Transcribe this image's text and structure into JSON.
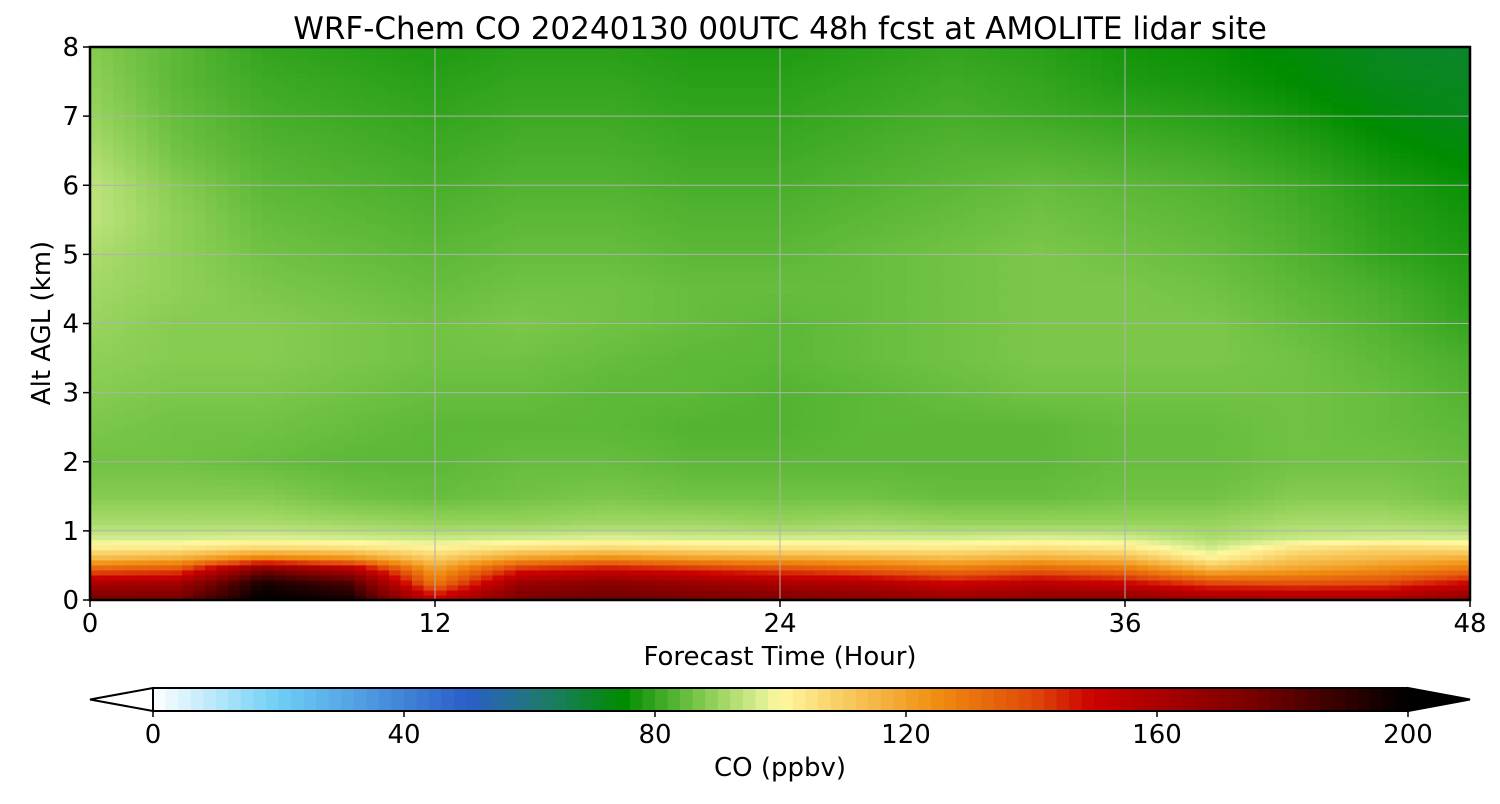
{
  "chart_data": {
    "type": "heatmap",
    "title": "WRF-Chem CO  20240130 00UTC 48h fcst at AMOLITE lidar site",
    "xlabel": "Forecast Time (Hour)",
    "ylabel": "Alt AGL (km)",
    "xlim": [
      0,
      48
    ],
    "ylim": [
      0,
      8
    ],
    "x_ticks": [
      "0",
      "12",
      "24",
      "36",
      "48"
    ],
    "y_ticks": [
      "0",
      "1",
      "2",
      "3",
      "4",
      "5",
      "6",
      "7",
      "8"
    ],
    "grid": true,
    "x": [
      0,
      3,
      6,
      9,
      12,
      15,
      18,
      21,
      24,
      27,
      30,
      33,
      36,
      39,
      42,
      45,
      48
    ],
    "y": [
      0.05,
      0.25,
      0.45,
      0.6,
      0.75,
      0.9,
      1.1,
      1.5,
      2.0,
      2.5,
      3.0,
      3.5,
      4.0,
      4.5,
      5.0,
      5.5,
      6.0,
      6.5,
      7.0,
      7.5,
      7.95
    ],
    "z": [
      [
        175,
        175,
        200,
        195,
        150,
        175,
        178,
        175,
        172,
        170,
        165,
        168,
        168,
        162,
        160,
        160,
        168
      ],
      [
        160,
        162,
        195,
        185,
        130,
        165,
        170,
        165,
        160,
        158,
        150,
        155,
        150,
        140,
        138,
        140,
        150
      ],
      [
        135,
        138,
        175,
        160,
        120,
        145,
        150,
        145,
        140,
        135,
        130,
        135,
        130,
        115,
        120,
        125,
        130
      ],
      [
        115,
        118,
        130,
        125,
        110,
        122,
        126,
        122,
        120,
        118,
        115,
        118,
        115,
        102,
        112,
        115,
        118
      ],
      [
        103,
        104,
        108,
        106,
        102,
        106,
        108,
        106,
        105,
        104,
        104,
        106,
        104,
        96,
        105,
        108,
        106
      ],
      [
        96,
        96,
        97,
        96,
        95,
        96,
        97,
        96,
        96,
        96,
        96,
        97,
        96,
        92,
        95,
        96,
        96
      ],
      [
        92,
        92,
        92,
        91,
        90,
        90,
        91,
        91,
        90,
        91,
        90,
        90,
        90,
        90,
        92,
        92,
        91
      ],
      [
        88,
        88,
        88,
        86,
        85,
        86,
        87,
        86,
        86,
        86,
        85,
        85,
        86,
        86,
        88,
        88,
        86
      ],
      [
        86,
        86,
        85,
        84,
        84,
        85,
        85,
        84,
        84,
        84,
        84,
        84,
        85,
        85,
        86,
        86,
        85
      ],
      [
        87,
        86,
        86,
        85,
        84,
        84,
        84,
        83,
        83,
        84,
        84,
        84,
        85,
        85,
        86,
        85,
        84
      ],
      [
        88,
        87,
        87,
        86,
        85,
        85,
        84,
        84,
        83,
        84,
        85,
        86,
        86,
        86,
        86,
        85,
        83
      ],
      [
        89,
        88,
        88,
        87,
        86,
        86,
        85,
        84,
        84,
        85,
        86,
        87,
        87,
        87,
        86,
        84,
        82
      ],
      [
        90,
        88,
        88,
        87,
        86,
        87,
        86,
        85,
        84,
        85,
        86,
        87,
        87,
        87,
        85,
        83,
        80
      ],
      [
        91,
        89,
        87,
        86,
        85,
        86,
        86,
        85,
        85,
        85,
        86,
        87,
        87,
        86,
        84,
        82,
        79
      ],
      [
        92,
        89,
        86,
        85,
        84,
        85,
        85,
        84,
        84,
        85,
        86,
        87,
        86,
        85,
        83,
        80,
        78
      ],
      [
        94,
        89,
        85,
        84,
        83,
        84,
        84,
        83,
        83,
        84,
        85,
        86,
        85,
        84,
        82,
        79,
        77
      ],
      [
        94,
        88,
        84,
        83,
        82,
        83,
        83,
        82,
        82,
        83,
        84,
        85,
        84,
        83,
        81,
        78,
        76
      ],
      [
        92,
        86,
        83,
        82,
        81,
        82,
        82,
        81,
        81,
        82,
        83,
        83,
        82,
        81,
        79,
        76,
        74
      ],
      [
        90,
        85,
        82,
        81,
        80,
        81,
        81,
        80,
        80,
        81,
        82,
        81,
        80,
        79,
        77,
        74,
        72
      ],
      [
        89,
        84,
        81,
        80,
        79,
        80,
        80,
        79,
        79,
        80,
        81,
        80,
        78,
        77,
        75,
        72,
        71
      ],
      [
        88,
        84,
        80,
        79,
        78,
        79,
        79,
        78,
        78,
        79,
        80,
        79,
        77,
        76,
        74,
        71,
        70
      ]
    ],
    "colorbar": {
      "label": "CO  (ppbv)",
      "min": 0,
      "max": 200,
      "extend": "both",
      "ticks": [
        "0",
        "40",
        "80",
        "120",
        "160",
        "200"
      ],
      "tick_values": [
        0,
        40,
        80,
        120,
        160,
        200
      ],
      "colors": [
        {
          "v": 0,
          "c": "#ffffff"
        },
        {
          "v": 20,
          "c": "#6ecff6"
        },
        {
          "v": 50,
          "c": "#2a5ec8"
        },
        {
          "v": 62,
          "c": "#1e7a6e"
        },
        {
          "v": 75,
          "c": "#008c00"
        },
        {
          "v": 88,
          "c": "#86cc50"
        },
        {
          "v": 96,
          "c": "#d2ec8c"
        },
        {
          "v": 100,
          "c": "#fff8a0"
        },
        {
          "v": 110,
          "c": "#f8cc60"
        },
        {
          "v": 125,
          "c": "#f08c10"
        },
        {
          "v": 140,
          "c": "#e04a0a"
        },
        {
          "v": 150,
          "c": "#cc0000"
        },
        {
          "v": 175,
          "c": "#7a0000"
        },
        {
          "v": 200,
          "c": "#000000"
        }
      ]
    }
  }
}
